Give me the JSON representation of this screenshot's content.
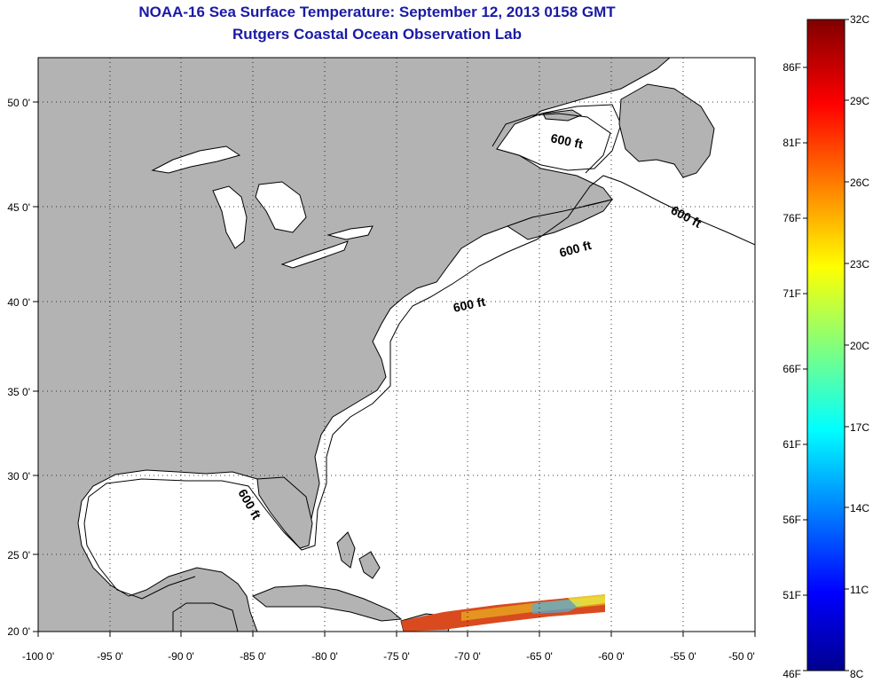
{
  "title": {
    "line1": "NOAA-16 Sea Surface Temperature:  September 12, 2013 0158 GMT",
    "line2": "Rutgers Coastal Ocean Observation Lab"
  },
  "map": {
    "lon_ticks": [
      "-100 0'",
      "-95 0'",
      "-90 0'",
      "-85 0'",
      "-80 0'",
      "-75 0'",
      "-70 0'",
      "-65 0'",
      "-60 0'",
      "-55 0'",
      "-50 0'"
    ],
    "lat_ticks": [
      "50 0'",
      "45 0'",
      "40 0'",
      "35 0'",
      "30 0'",
      "25 0'",
      "20 0'"
    ],
    "contour_labels": [
      "600 ft",
      "600 ft",
      "600 ft",
      "600 ft",
      "600 ft"
    ],
    "colors": {
      "land": "#b3b3b3",
      "ocean": "#ffffff",
      "title": "#1a1aa6"
    }
  },
  "colorbar": {
    "celsius_labels": [
      "32C",
      "29C",
      "26C",
      "23C",
      "20C",
      "17C",
      "14C",
      "11C",
      "8C"
    ],
    "fahrenheit_labels": [
      "86F",
      "81F",
      "76F",
      "71F",
      "66F",
      "61F",
      "56F",
      "51F",
      "46F"
    ]
  }
}
